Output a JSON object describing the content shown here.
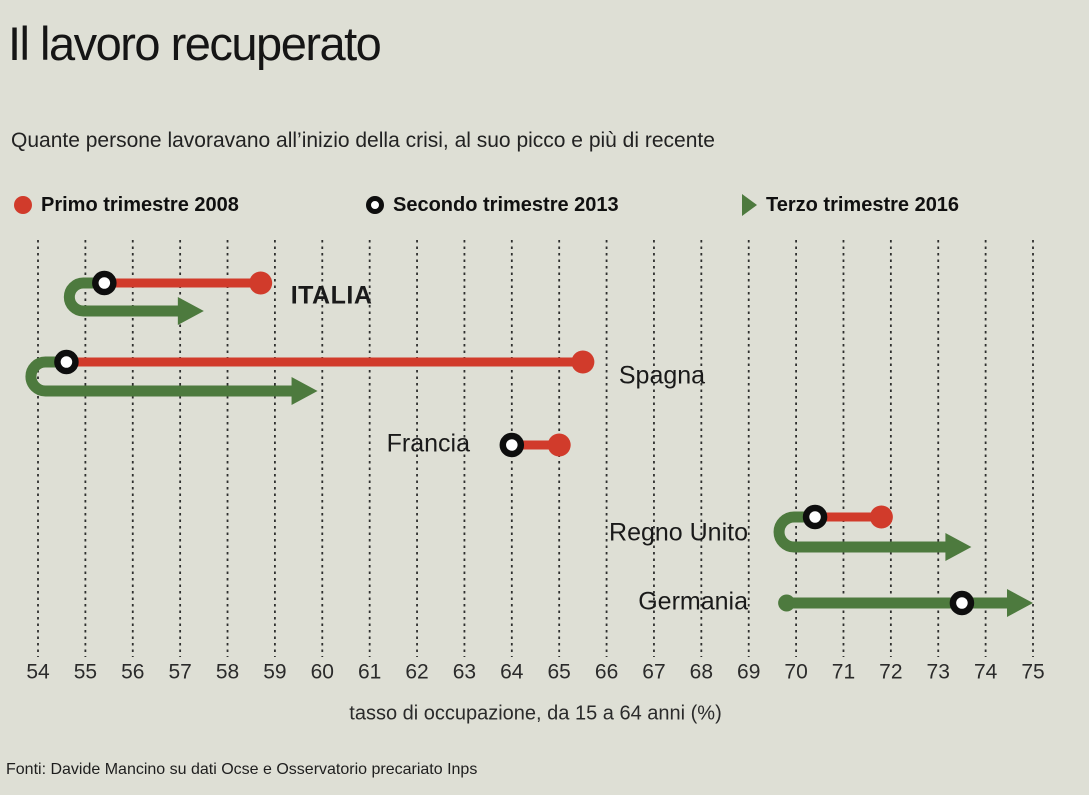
{
  "page": {
    "title": "Il lavoro recuperato",
    "subtitle": "Quante persone lavoravano all’inizio della crisi, al suo picco e più di recente",
    "source": "Fonti: Davide Mancino su dati Ocse e Osservatorio precariato Inps"
  },
  "colors": {
    "background": "#dedfd5",
    "red": "#d13b2b",
    "green": "#4d7a3e",
    "ring_black": "#0e0e0e",
    "text_dark": "#151515",
    "text_muted": "#2b2b2b",
    "grid": "#1c1c1c"
  },
  "legend": [
    {
      "marker": "red-dot",
      "label": "Primo trimestre 2008"
    },
    {
      "marker": "black-ring",
      "label": "Secondo trimestre 2013"
    },
    {
      "marker": "green-arrow",
      "label": "Terzo trimestre 2016"
    }
  ],
  "chart_data": {
    "type": "scatter",
    "subtype": "dot-plot-with-recovery-arrows",
    "title": "Il lavoro recuperato",
    "xlabel": "tasso di occupazione, da 15 a 64 anni (%)",
    "ylabel": "",
    "xlim": [
      54,
      75
    ],
    "ticks": [
      54,
      55,
      56,
      57,
      58,
      59,
      60,
      61,
      62,
      63,
      64,
      65,
      66,
      67,
      68,
      69,
      70,
      71,
      72,
      73,
      74,
      75
    ],
    "grid": "dotted-vertical",
    "legend_position": "top",
    "series_names": [
      "Primo trimestre 2008",
      "Secondo trimestre 2013",
      "Terzo trimestre 2016"
    ],
    "countries": [
      {
        "name": "ITALIA",
        "q1_2008": 58.7,
        "q2_2013": 55.4,
        "q3_2016": 57.5
      },
      {
        "name": "Spagna",
        "q1_2008": 65.5,
        "q2_2013": 54.6,
        "q3_2016": 59.9
      },
      {
        "name": "Francia",
        "q1_2008": 65.0,
        "q2_2013": 64.0,
        "q3_2016": null
      },
      {
        "name": "Regno Unito",
        "q1_2008": 71.8,
        "q2_2013": 70.4,
        "q3_2016": 73.7
      },
      {
        "name": "Germania",
        "q1_2008": 69.8,
        "q2_2013": 73.5,
        "q3_2016": 75.0
      }
    ]
  }
}
